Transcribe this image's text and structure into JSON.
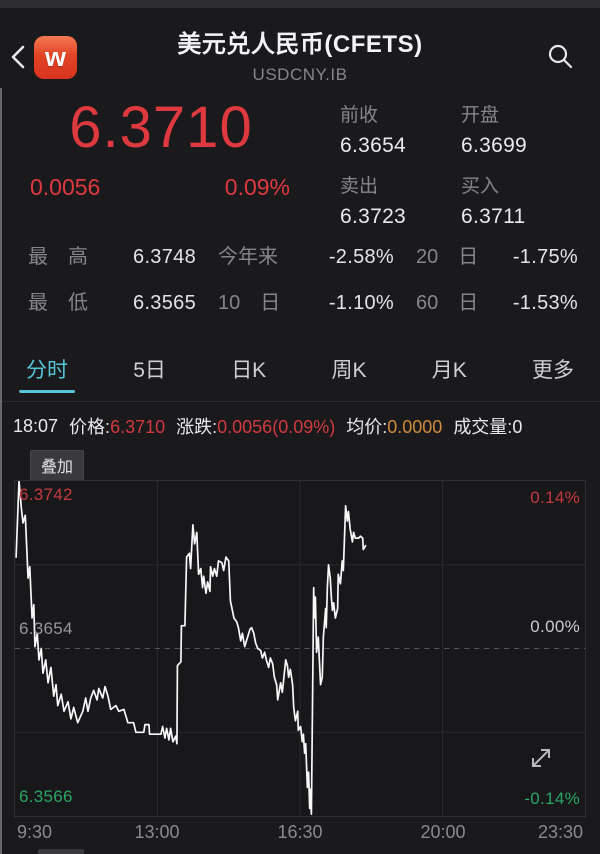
{
  "header": {
    "logo_text": "w",
    "title": "美元兑人民币(CFETS)",
    "subtitle": "USDCNY.IB"
  },
  "quote": {
    "price": "6.3710",
    "change": "0.0056",
    "change_pct": "0.09%",
    "fields": [
      {
        "label": "前收",
        "value": "6.3654"
      },
      {
        "label": "开盘",
        "value": "6.3699"
      },
      {
        "label": "卖出",
        "value": "6.3723"
      },
      {
        "label": "买入",
        "value": "6.3711"
      }
    ]
  },
  "stats": {
    "rows": [
      [
        {
          "label": "最　高",
          "value": "6.3748"
        },
        {
          "label": "今年来",
          "value": "-2.58%"
        },
        {
          "label": "20　日",
          "value": "-1.75%"
        }
      ],
      [
        {
          "label": "最　低",
          "value": "6.3565"
        },
        {
          "label": "10　日",
          "value": "-1.10%"
        },
        {
          "label": "60　日",
          "value": "-1.53%"
        }
      ]
    ]
  },
  "tabs": [
    {
      "label": "分时",
      "active": true
    },
    {
      "label": "5日",
      "active": false
    },
    {
      "label": "日K",
      "active": false
    },
    {
      "label": "周K",
      "active": false
    },
    {
      "label": "月K",
      "active": false
    },
    {
      "label": "更多",
      "active": false
    }
  ],
  "ticker": {
    "time": "18:07",
    "price_label": "价格:",
    "price": "6.3710",
    "change_label": "涨跌:",
    "change": "0.0056(0.09%)",
    "avg_label": "均价:",
    "avg": "0.0000",
    "vol_label": "成交量:",
    "vol": "0"
  },
  "chart": {
    "overlay_button": "叠加"
  },
  "icons": {
    "back": "chevron-left",
    "search": "magnifier",
    "logo": "wind-w-rounded-square",
    "expand": "diagonal-double-arrow"
  },
  "colors": {
    "up_red": "#de393e",
    "down_green": "#2aa564",
    "accent_cyan": "#56c5d7",
    "avg_orange": "#cf8a3c",
    "label_gray": "#86868a",
    "background": "#1a1a1c"
  },
  "chart_data": {
    "type": "line",
    "title": "分时 intraday line, USDCNY.IB",
    "x_ticks": [
      "9:30",
      "13:00",
      "16:30",
      "20:00",
      "23:30"
    ],
    "y_left_ticks": [
      "6.3742",
      "6.3654",
      "6.3566"
    ],
    "y_right_ticks": [
      "0.14%",
      "0.00%",
      "-0.14%"
    ],
    "y_range": [
      6.3566,
      6.3742
    ],
    "prev_close": 6.3654,
    "day_high": 6.3742,
    "day_low": 6.3566,
    "last_price": 6.371,
    "last_time_fraction": 0.615,
    "grid": {
      "v_fractions": [
        0.25,
        0.5,
        0.75
      ],
      "h_fractions": [
        0.25,
        0.5,
        0.75
      ],
      "mid_dashed": true
    },
    "line_color": "#f8f8f8",
    "points": [
      [
        0.002,
        6.3702
      ],
      [
        0.007,
        6.3742
      ],
      [
        0.011,
        6.3728
      ],
      [
        0.014,
        6.372
      ],
      [
        0.018,
        6.3724
      ],
      [
        0.023,
        6.3691
      ],
      [
        0.026,
        6.3697
      ],
      [
        0.03,
        6.367
      ],
      [
        0.033,
        6.3677
      ],
      [
        0.035,
        6.3655
      ],
      [
        0.039,
        6.3662
      ],
      [
        0.042,
        6.3648
      ],
      [
        0.046,
        6.3654
      ],
      [
        0.049,
        6.3641
      ],
      [
        0.054,
        6.3648
      ],
      [
        0.058,
        6.3636
      ],
      [
        0.063,
        6.3644
      ],
      [
        0.068,
        6.3629
      ],
      [
        0.072,
        6.3635
      ],
      [
        0.075,
        6.3624
      ],
      [
        0.081,
        6.363
      ],
      [
        0.086,
        6.3621
      ],
      [
        0.093,
        6.3626
      ],
      [
        0.098,
        6.3617
      ],
      [
        0.103,
        6.3623
      ],
      [
        0.11,
        6.3615
      ],
      [
        0.119,
        6.3621
      ],
      [
        0.124,
        6.3628
      ],
      [
        0.128,
        6.3621
      ],
      [
        0.133,
        6.3628
      ],
      [
        0.138,
        6.3632
      ],
      [
        0.144,
        6.3627
      ],
      [
        0.147,
        6.3633
      ],
      [
        0.154,
        6.3628
      ],
      [
        0.158,
        6.3634
      ],
      [
        0.163,
        6.3629
      ],
      [
        0.168,
        6.3622
      ],
      [
        0.177,
        6.3624
      ],
      [
        0.182,
        6.3621
      ],
      [
        0.191,
        6.3622
      ],
      [
        0.198,
        6.3615
      ],
      [
        0.208,
        6.3615
      ],
      [
        0.212,
        6.361
      ],
      [
        0.226,
        6.361
      ],
      [
        0.228,
        6.3614
      ],
      [
        0.235,
        6.3614
      ],
      [
        0.236,
        6.3609
      ],
      [
        0.256,
        6.3609
      ],
      [
        0.259,
        6.3613
      ],
      [
        0.263,
        6.3607
      ],
      [
        0.266,
        6.3612
      ],
      [
        0.27,
        6.3606
      ],
      [
        0.273,
        6.3612
      ],
      [
        0.277,
        6.3605
      ],
      [
        0.282,
        6.3608
      ],
      [
        0.284,
        6.3604
      ],
      [
        0.285,
        6.3645
      ],
      [
        0.291,
        6.3647
      ],
      [
        0.292,
        6.3666
      ],
      [
        0.298,
        6.3666
      ],
      [
        0.301,
        6.3702
      ],
      [
        0.306,
        6.3704
      ],
      [
        0.308,
        6.3696
      ],
      [
        0.312,
        6.3719
      ],
      [
        0.315,
        6.3709
      ],
      [
        0.319,
        6.3715
      ],
      [
        0.322,
        6.3693
      ],
      [
        0.326,
        6.3696
      ],
      [
        0.329,
        6.3686
      ],
      [
        0.331,
        6.3692
      ],
      [
        0.335,
        6.3683
      ],
      [
        0.338,
        6.3689
      ],
      [
        0.342,
        6.3684
      ],
      [
        0.343,
        6.3697
      ],
      [
        0.347,
        6.3692
      ],
      [
        0.35,
        6.3696
      ],
      [
        0.354,
        6.3692
      ],
      [
        0.357,
        6.37
      ],
      [
        0.363,
        6.3699
      ],
      [
        0.366,
        6.3695
      ],
      [
        0.37,
        6.3702
      ],
      [
        0.375,
        6.37
      ],
      [
        0.378,
        6.3679
      ],
      [
        0.384,
        6.367
      ],
      [
        0.389,
        6.3668
      ],
      [
        0.392,
        6.3665
      ],
      [
        0.396,
        6.3658
      ],
      [
        0.399,
        6.3662
      ],
      [
        0.403,
        6.3655
      ],
      [
        0.408,
        6.366
      ],
      [
        0.412,
        6.3664
      ],
      [
        0.415,
        6.3665
      ],
      [
        0.419,
        6.3662
      ],
      [
        0.422,
        6.3657
      ],
      [
        0.426,
        6.3654
      ],
      [
        0.431,
        6.3653
      ],
      [
        0.434,
        6.3649
      ],
      [
        0.438,
        6.3652
      ],
      [
        0.441,
        6.3648
      ],
      [
        0.445,
        6.3644
      ],
      [
        0.448,
        6.3649
      ],
      [
        0.452,
        6.3646
      ],
      [
        0.455,
        6.3639
      ],
      [
        0.459,
        6.3635
      ],
      [
        0.461,
        6.3627
      ],
      [
        0.466,
        6.3636
      ],
      [
        0.469,
        6.3631
      ],
      [
        0.475,
        6.3648
      ],
      [
        0.478,
        6.3645
      ],
      [
        0.48,
        6.3639
      ],
      [
        0.483,
        6.3643
      ],
      [
        0.487,
        6.3635
      ],
      [
        0.489,
        6.3623
      ],
      [
        0.492,
        6.3616
      ],
      [
        0.496,
        6.3621
      ],
      [
        0.497,
        6.3611
      ],
      [
        0.501,
        6.3613
      ],
      [
        0.504,
        6.3605
      ],
      [
        0.506,
        6.3609
      ],
      [
        0.508,
        6.3599
      ],
      [
        0.51,
        6.3604
      ],
      [
        0.513,
        6.3581
      ],
      [
        0.515,
        6.3589
      ],
      [
        0.517,
        6.357
      ],
      [
        0.518,
        6.358
      ],
      [
        0.52,
        6.3567
      ],
      [
        0.522,
        6.3628
      ],
      [
        0.524,
        6.3686
      ],
      [
        0.525,
        6.367
      ],
      [
        0.527,
        6.3681
      ],
      [
        0.529,
        6.3652
      ],
      [
        0.532,
        6.366
      ],
      [
        0.534,
        6.3648
      ],
      [
        0.536,
        6.3635
      ],
      [
        0.539,
        6.3639
      ],
      [
        0.541,
        6.366
      ],
      [
        0.545,
        6.3675
      ],
      [
        0.546,
        6.3665
      ],
      [
        0.548,
        6.3686
      ],
      [
        0.55,
        6.3698
      ],
      [
        0.553,
        6.3691
      ],
      [
        0.555,
        6.3681
      ],
      [
        0.557,
        6.3674
      ],
      [
        0.559,
        6.3678
      ],
      [
        0.562,
        6.367
      ],
      [
        0.566,
        6.3675
      ],
      [
        0.567,
        6.3693
      ],
      [
        0.571,
        6.3688
      ],
      [
        0.574,
        6.37
      ],
      [
        0.576,
        6.3695
      ],
      [
        0.58,
        6.3729
      ],
      [
        0.583,
        6.3721
      ],
      [
        0.585,
        6.3726
      ],
      [
        0.588,
        6.3717
      ],
      [
        0.592,
        6.371
      ],
      [
        0.594,
        6.3715
      ],
      [
        0.597,
        6.3712
      ],
      [
        0.603,
        6.3712
      ],
      [
        0.606,
        6.3713
      ],
      [
        0.61,
        6.3712
      ],
      [
        0.611,
        6.3706
      ],
      [
        0.615,
        6.3708
      ]
    ]
  }
}
